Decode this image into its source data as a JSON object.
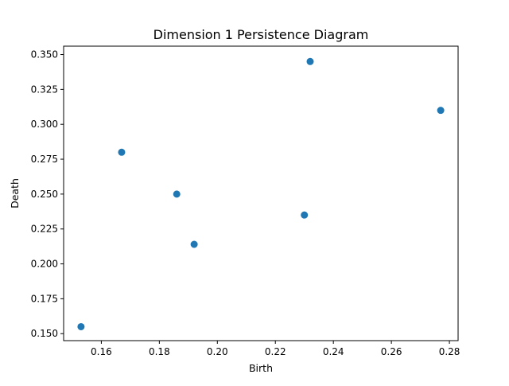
{
  "chart_data": {
    "type": "scatter",
    "title": "Dimension 1 Persistence Diagram",
    "xlabel": "Birth",
    "ylabel": "Death",
    "xlim": [
      0.147,
      0.283
    ],
    "ylim": [
      0.145,
      0.356
    ],
    "xticks": [
      0.16,
      0.18,
      0.2,
      0.22,
      0.24,
      0.26,
      0.28
    ],
    "xtick_labels": [
      "0.16",
      "0.18",
      "0.20",
      "0.22",
      "0.24",
      "0.26",
      "0.28"
    ],
    "yticks": [
      0.15,
      0.175,
      0.2,
      0.225,
      0.25,
      0.275,
      0.3,
      0.325,
      0.35
    ],
    "ytick_labels": [
      "0.150",
      "0.175",
      "0.200",
      "0.225",
      "0.250",
      "0.275",
      "0.300",
      "0.325",
      "0.350"
    ],
    "grid": false,
    "legend": "none",
    "marker_color": "#1f77b4",
    "points": [
      {
        "x": 0.153,
        "y": 0.155
      },
      {
        "x": 0.167,
        "y": 0.28
      },
      {
        "x": 0.186,
        "y": 0.25
      },
      {
        "x": 0.192,
        "y": 0.214
      },
      {
        "x": 0.23,
        "y": 0.235
      },
      {
        "x": 0.232,
        "y": 0.345
      },
      {
        "x": 0.277,
        "y": 0.31
      }
    ]
  }
}
